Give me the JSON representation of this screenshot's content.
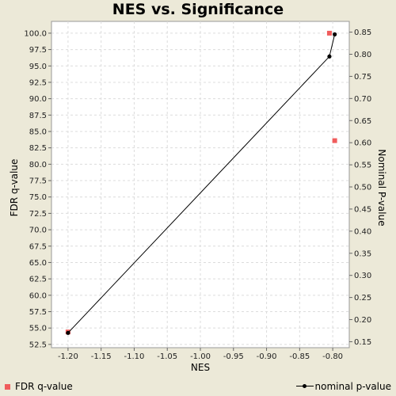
{
  "chart_data": {
    "type": "scatter",
    "title": "NES vs. Significance",
    "xlabel": "NES",
    "ylabel_left": "FDR q-value",
    "ylabel_right": "Nominal P-value",
    "xlim": [
      -1.225,
      -0.775
    ],
    "ylim_left": [
      52.0,
      101.8
    ],
    "ylim_right": [
      0.1365,
      0.8743
    ],
    "x_ticks": [
      "-1.20",
      "-1.15",
      "-1.10",
      "-1.05",
      "-1.00",
      "-0.95",
      "-0.90",
      "-0.85",
      "-0.80"
    ],
    "y_left_ticks": [
      "52.5",
      "55.0",
      "57.5",
      "60.0",
      "62.5",
      "65.0",
      "67.5",
      "70.0",
      "72.5",
      "75.0",
      "77.5",
      "80.0",
      "82.5",
      "85.0",
      "87.5",
      "90.0",
      "92.5",
      "95.0",
      "97.5",
      "100.0"
    ],
    "y_right_ticks": [
      "0.15",
      "0.20",
      "0.25",
      "0.30",
      "0.35",
      "0.40",
      "0.45",
      "0.50",
      "0.55",
      "0.60",
      "0.65",
      "0.70",
      "0.75",
      "0.80",
      "0.85"
    ],
    "grid": true,
    "series": [
      {
        "name": "FDR q-value",
        "axis": "left",
        "color": "#f05c5c",
        "marker": "square",
        "line": false,
        "points": [
          [
            -1.2,
            54.4
          ],
          [
            -0.805,
            100.0
          ],
          [
            -0.797,
            83.6
          ]
        ]
      },
      {
        "name": "nominal p-value",
        "axis": "right",
        "color": "#000000",
        "marker": "circle",
        "line": true,
        "points": [
          [
            -1.2,
            0.17
          ],
          [
            -0.805,
            0.795
          ],
          [
            -0.797,
            0.845
          ]
        ]
      }
    ]
  },
  "legend": {
    "left_label": "FDR q-value",
    "right_label": "nominal p-value"
  }
}
